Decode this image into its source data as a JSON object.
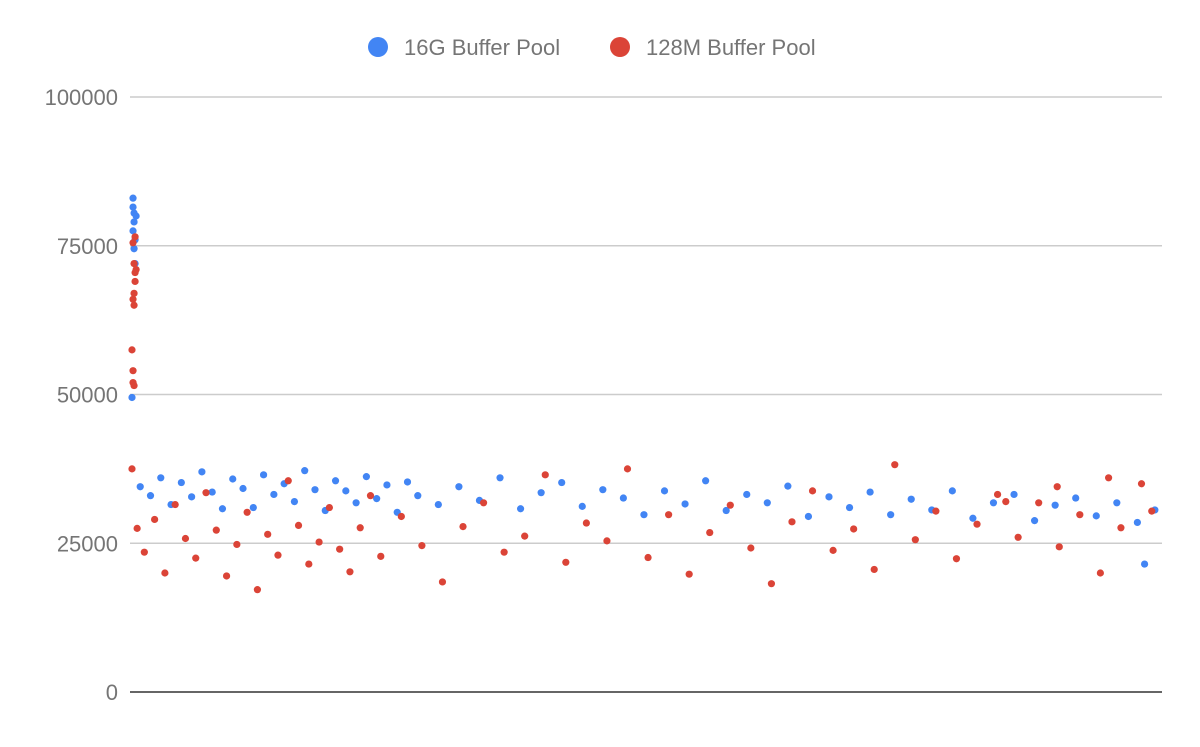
{
  "chart_data": {
    "type": "scatter",
    "title": "",
    "xlabel": "",
    "ylabel": "",
    "ylim": [
      0,
      100000
    ],
    "xlim": [
      0,
      1000
    ],
    "yticks": [
      "0",
      "25000",
      "50000",
      "75000",
      "100000"
    ],
    "ytick_values": [
      0,
      25000,
      50000,
      75000,
      100000
    ],
    "grid": true,
    "legend": "top",
    "series": [
      {
        "name": "16G Buffer Pool",
        "color": "#4285f4",
        "points": [
          [
            0,
            49500
          ],
          [
            1,
            83000
          ],
          [
            1,
            81500
          ],
          [
            2,
            80500
          ],
          [
            2,
            79000
          ],
          [
            1,
            77500
          ],
          [
            3,
            76000
          ],
          [
            2,
            74500
          ],
          [
            3,
            72000
          ],
          [
            4,
            80000
          ],
          [
            8,
            34500
          ],
          [
            18,
            33000
          ],
          [
            28,
            36000
          ],
          [
            38,
            31500
          ],
          [
            48,
            35200
          ],
          [
            58,
            32800
          ],
          [
            68,
            37000
          ],
          [
            78,
            33600
          ],
          [
            88,
            30800
          ],
          [
            98,
            35800
          ],
          [
            108,
            34200
          ],
          [
            118,
            31000
          ],
          [
            128,
            36500
          ],
          [
            138,
            33200
          ],
          [
            148,
            35000
          ],
          [
            158,
            32000
          ],
          [
            168,
            37200
          ],
          [
            178,
            34000
          ],
          [
            188,
            30500
          ],
          [
            198,
            35500
          ],
          [
            208,
            33800
          ],
          [
            218,
            31800
          ],
          [
            228,
            36200
          ],
          [
            238,
            32500
          ],
          [
            248,
            34800
          ],
          [
            258,
            30200
          ],
          [
            268,
            35300
          ],
          [
            278,
            33000
          ],
          [
            298,
            31500
          ],
          [
            318,
            34500
          ],
          [
            338,
            32200
          ],
          [
            358,
            36000
          ],
          [
            378,
            30800
          ],
          [
            398,
            33500
          ],
          [
            418,
            35200
          ],
          [
            438,
            31200
          ],
          [
            458,
            34000
          ],
          [
            478,
            32600
          ],
          [
            498,
            29800
          ],
          [
            518,
            33800
          ],
          [
            538,
            31600
          ],
          [
            558,
            35500
          ],
          [
            578,
            30500
          ],
          [
            598,
            33200
          ],
          [
            618,
            31800
          ],
          [
            638,
            34600
          ],
          [
            658,
            29500
          ],
          [
            678,
            32800
          ],
          [
            698,
            31000
          ],
          [
            718,
            33600
          ],
          [
            738,
            29800
          ],
          [
            758,
            32400
          ],
          [
            778,
            30600
          ],
          [
            798,
            33800
          ],
          [
            818,
            29200
          ],
          [
            838,
            31800
          ],
          [
            858,
            33200
          ],
          [
            878,
            28800
          ],
          [
            898,
            31400
          ],
          [
            918,
            32600
          ],
          [
            938,
            29600
          ],
          [
            958,
            31800
          ],
          [
            978,
            28500
          ],
          [
            995,
            30600
          ],
          [
            985,
            21500
          ]
        ]
      },
      {
        "name": "128M Buffer Pool",
        "color": "#db4437",
        "points": [
          [
            0,
            37500
          ],
          [
            0,
            57500
          ],
          [
            1,
            54000
          ],
          [
            1,
            52000
          ],
          [
            2,
            51500
          ],
          [
            1,
            66000
          ],
          [
            2,
            65000
          ],
          [
            2,
            67000
          ],
          [
            3,
            69000
          ],
          [
            3,
            70500
          ],
          [
            2,
            72000
          ],
          [
            1,
            75500
          ],
          [
            3,
            76500
          ],
          [
            4,
            71000
          ],
          [
            5,
            27500
          ],
          [
            12,
            23500
          ],
          [
            22,
            29000
          ],
          [
            32,
            20000
          ],
          [
            42,
            31500
          ],
          [
            52,
            25800
          ],
          [
            62,
            22500
          ],
          [
            72,
            33500
          ],
          [
            82,
            27200
          ],
          [
            92,
            19500
          ],
          [
            102,
            24800
          ],
          [
            112,
            30200
          ],
          [
            122,
            17200
          ],
          [
            132,
            26500
          ],
          [
            142,
            23000
          ],
          [
            152,
            35500
          ],
          [
            162,
            28000
          ],
          [
            172,
            21500
          ],
          [
            182,
            25200
          ],
          [
            192,
            31000
          ],
          [
            202,
            24000
          ],
          [
            212,
            20200
          ],
          [
            222,
            27600
          ],
          [
            232,
            33000
          ],
          [
            242,
            22800
          ],
          [
            262,
            29500
          ],
          [
            282,
            24600
          ],
          [
            302,
            18500
          ],
          [
            322,
            27800
          ],
          [
            342,
            31800
          ],
          [
            362,
            23500
          ],
          [
            382,
            26200
          ],
          [
            402,
            36500
          ],
          [
            422,
            21800
          ],
          [
            442,
            28400
          ],
          [
            462,
            25400
          ],
          [
            482,
            37500
          ],
          [
            502,
            22600
          ],
          [
            522,
            29800
          ],
          [
            542,
            19800
          ],
          [
            562,
            26800
          ],
          [
            582,
            31400
          ],
          [
            602,
            24200
          ],
          [
            622,
            18200
          ],
          [
            642,
            28600
          ],
          [
            662,
            33800
          ],
          [
            682,
            23800
          ],
          [
            702,
            27400
          ],
          [
            722,
            20600
          ],
          [
            742,
            38200
          ],
          [
            762,
            25600
          ],
          [
            782,
            30400
          ],
          [
            802,
            22400
          ],
          [
            822,
            28200
          ],
          [
            842,
            33200
          ],
          [
            862,
            26000
          ],
          [
            882,
            31800
          ],
          [
            902,
            24400
          ],
          [
            922,
            29800
          ],
          [
            942,
            20000
          ],
          [
            962,
            27600
          ],
          [
            982,
            35000
          ],
          [
            992,
            30400
          ],
          [
            950,
            36000
          ],
          [
            900,
            34500
          ],
          [
            850,
            32000
          ]
        ]
      }
    ]
  }
}
